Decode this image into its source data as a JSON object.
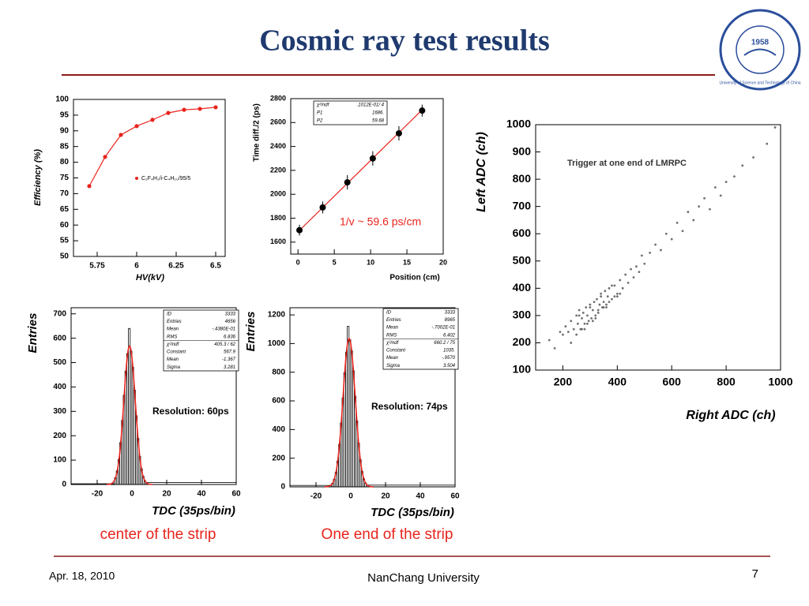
{
  "slide": {
    "title": "Cosmic ray test results",
    "logo": {
      "year": "1958",
      "name": "University of Science and Technology of China"
    },
    "captions": [
      "center of the strip",
      "One end of the strip"
    ],
    "footer": {
      "date": "Apr. 18, 2010",
      "venue": "NanChang University",
      "page": "7"
    }
  },
  "chart_data": [
    {
      "type": "scatter",
      "line": true,
      "xlabel": "HV(kV)",
      "ylabel": "Efficiency (%)",
      "xlim": [
        5.6,
        6.56
      ],
      "xticks": [
        5.75,
        6,
        6.25,
        6.5
      ],
      "ylim": [
        50,
        100
      ],
      "yticks": [
        50,
        55,
        60,
        65,
        70,
        75,
        80,
        85,
        90,
        95,
        100
      ],
      "series": [
        {
          "name": "C₂F₄H₂/i-C₄H₁₀/95/5",
          "color": "#e8241d",
          "x": [
            5.7,
            5.8,
            5.9,
            6.0,
            6.1,
            6.2,
            6.3,
            6.4,
            6.5
          ],
          "values": [
            72.4,
            81.7,
            88.7,
            91.5,
            93.5,
            95.7,
            96.7,
            97,
            97.5
          ]
        }
      ]
    },
    {
      "type": "scatter",
      "xlabel": "Position (cm)",
      "ylabel": "Time diff./2 (ps)",
      "xlim": [
        -1,
        20
      ],
      "xticks": [
        0,
        5,
        10,
        15,
        20
      ],
      "ylim": [
        1500,
        2800
      ],
      "yticks": [
        1600,
        1800,
        2000,
        2200,
        2400,
        2600,
        2800
      ],
      "annotation": "1/v ~ 59.6 ps/cm",
      "stats": [
        [
          "χ²/ndf",
          ".1012E-01/  4"
        ],
        [
          "P1",
          "1686."
        ],
        [
          "P2",
          "59.68"
        ]
      ],
      "fit_color": "#e8241d",
      "series": [
        {
          "color": "#000000",
          "x": [
            0.2,
            3.4,
            6.8,
            10.3,
            13.9,
            17.1
          ],
          "values": [
            1700,
            1890,
            2100,
            2300,
            2510,
            2700
          ],
          "errors": [
            45,
            50,
            60,
            60,
            60,
            50
          ]
        }
      ]
    },
    {
      "type": "histogram",
      "xlabel": "TDC (35ps/bin)",
      "ylabel": "Entries",
      "xlim": [
        -35,
        60
      ],
      "xticks": [
        -20,
        0,
        20,
        40,
        60
      ],
      "ylim": [
        0,
        725
      ],
      "yticks": [
        0,
        100,
        200,
        300,
        400,
        500,
        600,
        700
      ],
      "annotation": "Resolution: 60ps",
      "fit_color": "#e8241d",
      "color": "#000000",
      "stats": [
        [
          "ID",
          "3333"
        ],
        [
          "Entries",
          "4656"
        ],
        [
          "Mean",
          "-.4380E-01"
        ],
        [
          "RMS",
          "6.836"
        ],
        [
          "χ²/ndf",
          "405.3  /  62"
        ],
        [
          "Constant",
          "567.9"
        ],
        [
          "Mean",
          "-1.367"
        ],
        [
          "Sigma",
          "3.281"
        ]
      ],
      "bins": [
        -35,
        -10,
        -9,
        -8,
        -7,
        -6,
        -5,
        -4,
        -3,
        -2,
        -1,
        0,
        1,
        2,
        3,
        4,
        5,
        6,
        7,
        8,
        60
      ],
      "counts": [
        3,
        28,
        56,
        103,
        172,
        263,
        366,
        465,
        537,
        640,
        547,
        481,
        387,
        282,
        189,
        115,
        64,
        33,
        15,
        8
      ]
    },
    {
      "type": "histogram",
      "xlabel": "TDC (35ps/bin)",
      "ylabel": "Entries",
      "xlim": [
        -35,
        60
      ],
      "xticks": [
        -20,
        0,
        20,
        40,
        60
      ],
      "ylim": [
        0,
        1250
      ],
      "yticks": [
        0,
        200,
        400,
        600,
        800,
        1000,
        1200
      ],
      "annotation": "Resolution: 74ps",
      "fit_color": "#e8241d",
      "color": "#000000",
      "stats": [
        [
          "ID",
          "3333"
        ],
        [
          "Entries",
          "8965"
        ],
        [
          "Mean",
          "-.7002E-01"
        ],
        [
          "RMS",
          "6.402"
        ],
        [
          "χ²/ndf",
          "660.2  /  75"
        ],
        [
          "Constant",
          "1035."
        ],
        [
          "Mean",
          "-.9570"
        ],
        [
          "Sigma",
          "3.504"
        ]
      ],
      "bins": [
        -35,
        -11,
        -10,
        -9,
        -8,
        -7,
        -6,
        -5,
        -4,
        -3,
        -2,
        -1,
        0,
        1,
        2,
        3,
        4,
        5,
        6,
        7,
        8,
        9,
        60
      ],
      "counts": [
        10,
        25,
        53,
        102,
        180,
        296,
        446,
        620,
        797,
        940,
        1120,
        1026,
        949,
        810,
        633,
        460,
        305,
        189,
        107,
        56,
        27,
        12
      ]
    },
    {
      "type": "scatter",
      "xlabel": "Right ADC (ch)",
      "ylabel": "Left ADC (ch)",
      "xlim": [
        100,
        1000
      ],
      "xticks": [
        200,
        400,
        600,
        800,
        1000
      ],
      "ylim": [
        100,
        1000
      ],
      "yticks": [
        100,
        200,
        300,
        400,
        500,
        600,
        700,
        800,
        900,
        1000
      ],
      "annotation": "Trigger at one end of LMRPC",
      "series": [
        {
          "color": "#333333",
          "x": [
            150,
            170,
            190,
            200,
            210,
            220,
            230,
            240,
            250,
            255,
            260,
            265,
            270,
            275,
            280,
            285,
            290,
            295,
            300,
            305,
            310,
            315,
            320,
            325,
            330,
            335,
            340,
            345,
            350,
            355,
            360,
            365,
            370,
            380,
            390,
            400,
            410,
            420,
            430,
            440,
            450,
            460,
            470,
            480,
            490,
            500,
            520,
            540,
            560,
            580,
            600,
            620,
            640,
            660,
            680,
            700,
            720,
            740,
            760,
            780,
            800,
            830,
            860,
            900,
            950,
            980,
            230,
            250,
            270,
            290,
            310,
            330,
            350,
            370,
            390,
            410,
            260,
            280,
            300,
            320,
            340,
            360,
            380,
            400
          ],
          "values": [
            210,
            180,
            240,
            230,
            260,
            240,
            280,
            250,
            300,
            270,
            320,
            250,
            290,
            310,
            270,
            330,
            300,
            280,
            340,
            290,
            320,
            350,
            300,
            360,
            320,
            340,
            380,
            330,
            350,
            390,
            340,
            370,
            400,
            360,
            410,
            380,
            430,
            400,
            450,
            420,
            470,
            440,
            480,
            460,
            520,
            490,
            530,
            560,
            540,
            600,
            580,
            640,
            610,
            680,
            650,
            700,
            730,
            690,
            770,
            740,
            790,
            810,
            850,
            880,
            930,
            990,
            200,
            230,
            250,
            270,
            280,
            310,
            330,
            350,
            370,
            380,
            300,
            250,
            330,
            290,
            370,
            330,
            410,
            370
          ]
        }
      ]
    }
  ]
}
